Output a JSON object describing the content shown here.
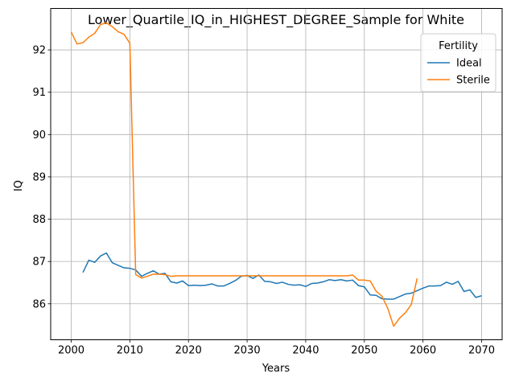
{
  "chart_data": {
    "type": "line",
    "title": "Lower_Quartile_IQ_in_HIGHEST_DEGREE_Sample for White",
    "xlabel": "Years",
    "ylabel": "IQ",
    "xlim": [
      1996.5,
      2073.5
    ],
    "ylim": [
      85.15,
      92.98
    ],
    "xticks": [
      2000,
      2010,
      2020,
      2030,
      2040,
      2050,
      2060,
      2070
    ],
    "yticks": [
      86,
      87,
      88,
      89,
      90,
      91,
      92
    ],
    "grid": true,
    "legend": {
      "title": "Fertility",
      "position": "top-right"
    },
    "series": [
      {
        "name": "Ideal",
        "color": "#1f77b4",
        "x": [
          2002,
          2003,
          2004,
          2005,
          2006,
          2007,
          2008,
          2009,
          2010,
          2011,
          2012,
          2013,
          2014,
          2015,
          2016,
          2017,
          2018,
          2019,
          2020,
          2021,
          2022,
          2023,
          2024,
          2025,
          2026,
          2027,
          2028,
          2029,
          2030,
          2031,
          2032,
          2033,
          2034,
          2035,
          2036,
          2037,
          2038,
          2039,
          2040,
          2041,
          2042,
          2043,
          2044,
          2045,
          2046,
          2047,
          2048,
          2049,
          2050,
          2051,
          2052,
          2053,
          2054,
          2055,
          2056,
          2057,
          2058,
          2059,
          2060,
          2061,
          2062,
          2063,
          2064,
          2065,
          2066,
          2067,
          2068,
          2069,
          2070
        ],
        "y": [
          86.74,
          87.03,
          86.98,
          87.13,
          87.2,
          86.97,
          86.91,
          86.85,
          86.84,
          86.8,
          86.65,
          86.72,
          86.78,
          86.7,
          86.72,
          86.52,
          86.49,
          86.54,
          86.43,
          86.44,
          86.43,
          86.44,
          86.47,
          86.42,
          86.42,
          86.48,
          86.55,
          86.65,
          86.67,
          86.6,
          86.68,
          86.53,
          86.52,
          86.48,
          86.51,
          86.46,
          86.44,
          86.45,
          86.41,
          86.48,
          86.49,
          86.52,
          86.57,
          86.55,
          86.57,
          86.54,
          86.56,
          86.43,
          86.4,
          86.21,
          86.2,
          86.12,
          86.11,
          86.11,
          86.17,
          86.23,
          86.25,
          86.31,
          86.37,
          86.42,
          86.42,
          86.43,
          86.51,
          86.46,
          86.53,
          86.29,
          86.33,
          86.15,
          86.19
        ]
      },
      {
        "name": "Sterile",
        "color": "#ff7f0e",
        "x": [
          2000,
          2001,
          2002,
          2003,
          2004,
          2005,
          2006,
          2007,
          2008,
          2009,
          2010,
          2011,
          2012,
          2013,
          2014,
          2015,
          2016,
          2017,
          2018,
          2019,
          2020,
          2021,
          2022,
          2023,
          2024,
          2025,
          2026,
          2027,
          2028,
          2029,
          2030,
          2031,
          2032,
          2033,
          2034,
          2035,
          2036,
          2037,
          2038,
          2039,
          2040,
          2041,
          2042,
          2043,
          2044,
          2045,
          2046,
          2047,
          2048,
          2049,
          2050,
          2051,
          2052,
          2053,
          2054,
          2055,
          2056,
          2057,
          2058,
          2059
        ],
        "y": [
          92.42,
          92.14,
          92.17,
          92.3,
          92.39,
          92.6,
          92.64,
          92.55,
          92.43,
          92.37,
          92.16,
          86.69,
          86.61,
          86.65,
          86.7,
          86.7,
          86.69,
          86.65,
          86.66,
          86.66,
          86.66,
          86.66,
          86.66,
          86.66,
          86.66,
          86.66,
          86.66,
          86.66,
          86.66,
          86.66,
          86.66,
          86.66,
          86.66,
          86.66,
          86.66,
          86.66,
          86.66,
          86.66,
          86.66,
          86.66,
          86.66,
          86.66,
          86.66,
          86.66,
          86.66,
          86.66,
          86.66,
          86.66,
          86.68,
          86.56,
          86.56,
          86.54,
          86.3,
          86.18,
          85.89,
          85.47,
          85.66,
          85.79,
          85.98,
          86.6
        ]
      }
    ]
  }
}
